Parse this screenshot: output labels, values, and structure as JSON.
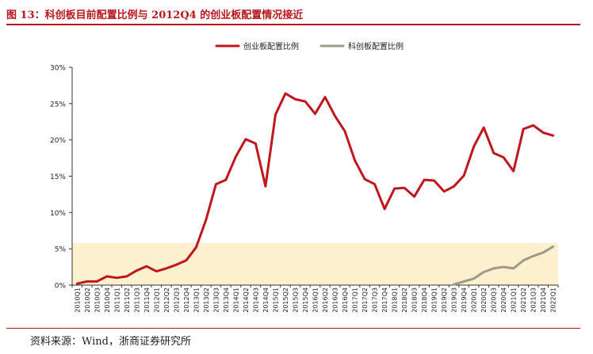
{
  "figure": {
    "title": "图 13：科创板目前配置比例与 2012Q4 的创业板配置情况接近",
    "source": "资料来源：Wind，浙商证券研究所"
  },
  "chart_data": {
    "type": "line",
    "title": "",
    "xlabel": "",
    "ylabel": "",
    "ylim": [
      0,
      30
    ],
    "yticks": [
      "0%",
      "5%",
      "10%",
      "15%",
      "20%",
      "25%",
      "30%"
    ],
    "legend_position": "top-center",
    "highlight_band": {
      "from": 0,
      "to": 5.8,
      "color": "#fdf0cf"
    },
    "categories": [
      "2010Q1",
      "2010Q2",
      "2010Q3",
      "2010Q4",
      "2011Q1",
      "2011Q2",
      "2011Q3",
      "2011Q4",
      "2012Q1",
      "2012Q2",
      "2012Q3",
      "2012Q4",
      "2013Q1",
      "2013Q2",
      "2013Q3",
      "2013Q4",
      "2014Q1",
      "2014Q2",
      "2014Q3",
      "2014Q4",
      "2015Q1",
      "2015Q2",
      "2015Q3",
      "2015Q4",
      "2016Q1",
      "2016Q2",
      "2016Q3",
      "2016Q4",
      "2017Q1",
      "2017Q2",
      "2017Q3",
      "2017Q4",
      "2018Q1",
      "2018Q2",
      "2018Q3",
      "2018Q4",
      "2019Q1",
      "2019Q2",
      "2019Q3",
      "2019Q4",
      "2020Q1",
      "2020Q2",
      "2020Q3",
      "2020Q4",
      "2021Q1",
      "2021Q2",
      "2021Q3",
      "2021Q4",
      "2022Q1"
    ],
    "series": [
      {
        "name": "创业板配置比例",
        "color": "#c0161c",
        "values": [
          0.2,
          0.5,
          0.5,
          1.2,
          1.0,
          1.2,
          2.0,
          2.6,
          1.9,
          2.3,
          2.8,
          3.4,
          5.2,
          9.0,
          13.9,
          14.5,
          17.7,
          20.1,
          19.5,
          13.6,
          23.5,
          26.4,
          25.6,
          25.3,
          23.6,
          25.9,
          23.3,
          21.2,
          17.2,
          14.6,
          13.9,
          10.5,
          13.3,
          13.4,
          12.2,
          14.5,
          14.4,
          12.9,
          13.6,
          15.1,
          19.1,
          21.7,
          18.2,
          17.6,
          15.7,
          21.5,
          22.0,
          21.0,
          20.6
        ]
      },
      {
        "name": "科创板配置比例",
        "color": "#9e9a88",
        "values": [
          null,
          null,
          null,
          null,
          null,
          null,
          null,
          null,
          null,
          null,
          null,
          null,
          null,
          null,
          null,
          null,
          null,
          null,
          null,
          null,
          null,
          null,
          null,
          null,
          null,
          null,
          null,
          null,
          null,
          null,
          null,
          null,
          null,
          null,
          null,
          null,
          null,
          null,
          0.1,
          0.5,
          0.9,
          1.8,
          2.3,
          2.5,
          2.3,
          3.4,
          4.0,
          4.5,
          5.3
        ]
      }
    ]
  }
}
